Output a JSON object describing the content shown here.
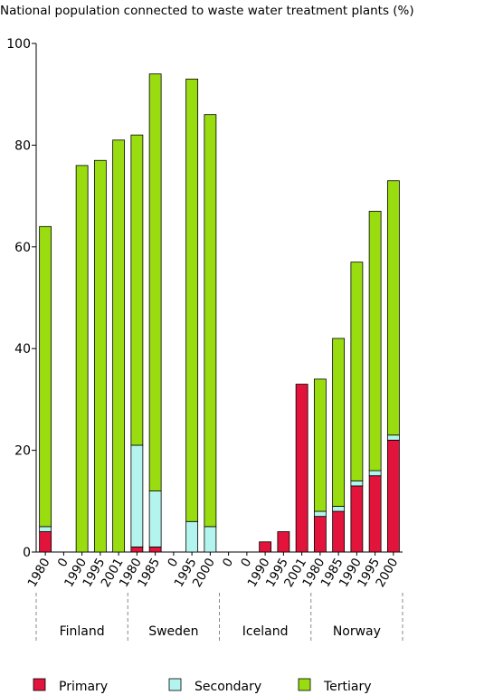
{
  "chart_data": {
    "type": "bar",
    "stacked": true,
    "title": "National population connected to waste water treatment plants (%)",
    "xlabel": "",
    "ylabel": "",
    "ylim": [
      0,
      100
    ],
    "yticks": [
      0,
      20,
      40,
      60,
      80,
      100
    ],
    "grid": false,
    "legend_position": "bottom",
    "groups": [
      {
        "name": "Finland",
        "categories": [
          "1980",
          "0",
          "1990",
          "1995",
          "2001"
        ]
      },
      {
        "name": "Sweden",
        "categories": [
          "1980",
          "1985",
          "0",
          "1995",
          "2000"
        ]
      },
      {
        "name": "Iceland",
        "categories": [
          "0",
          "0",
          "1990",
          "1995",
          "2001"
        ]
      },
      {
        "name": "Norway",
        "categories": [
          "1980",
          "1985",
          "1990",
          "1995",
          "2000"
        ]
      }
    ],
    "categories": [
      "1980",
      "0",
      "1990",
      "1995",
      "2001",
      "1980",
      "1985",
      "0",
      "1995",
      "2000",
      "0",
      "0",
      "1990",
      "1995",
      "2001",
      "1980",
      "1985",
      "1990",
      "1995",
      "2000"
    ],
    "series": [
      {
        "name": "Primary",
        "color": "#e2143c",
        "values": [
          4,
          0,
          0,
          0,
          0,
          1,
          1,
          0,
          0,
          0,
          0,
          0,
          2,
          4,
          33,
          7,
          8,
          13,
          15,
          22
        ]
      },
      {
        "name": "Secondary",
        "color": "#b3f5ee",
        "values": [
          1,
          0,
          0,
          0,
          0,
          20,
          11,
          0,
          6,
          5,
          0,
          0,
          0,
          0,
          0,
          1,
          1,
          1,
          1,
          1
        ]
      },
      {
        "name": "Tertiary",
        "color": "#99dd11",
        "values": [
          59,
          0,
          76,
          77,
          81,
          61,
          82,
          0,
          87,
          81,
          0,
          0,
          0,
          0,
          0,
          26,
          33,
          43,
          51,
          50
        ]
      }
    ]
  }
}
